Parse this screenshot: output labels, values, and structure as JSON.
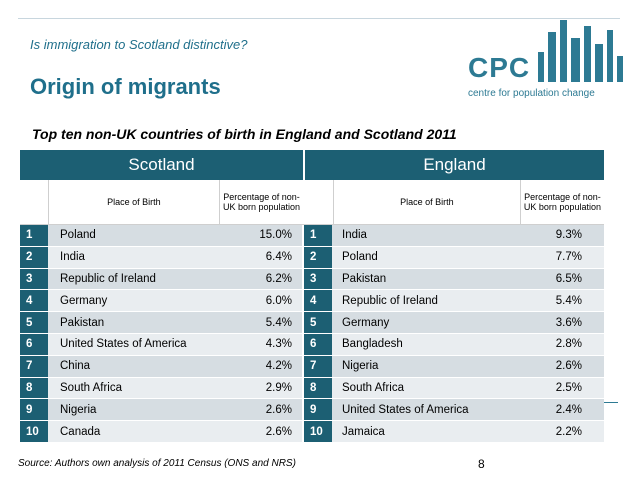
{
  "header": {
    "subtitle": "Is immigration to Scotland distinctive?",
    "title": "Origin of migrants"
  },
  "logo": {
    "text": "CPC",
    "subtext": "centre for population change",
    "color": "#2d7a93"
  },
  "table": {
    "title": "Top ten non-UK countries of birth in England and Scotland 2011",
    "scotland_label": "Scotland",
    "england_label": "England",
    "scotland_headers": {
      "place": "Place of Birth",
      "pct": "Percentage of non-UK born population"
    },
    "england_headers": {
      "place": "Place of Birth",
      "pct": "Percentage of non-UK born population"
    },
    "rows": [
      {
        "s_rank": "1",
        "s_place": "Poland",
        "s_pct": "15.0%",
        "e_rank": "1",
        "e_place": "India",
        "e_pct": "9.3%"
      },
      {
        "s_rank": "2",
        "s_place": "India",
        "s_pct": "6.4%",
        "e_rank": "2",
        "e_place": "Poland",
        "e_pct": "7.7%"
      },
      {
        "s_rank": "3",
        "s_place": "Republic of Ireland",
        "s_pct": "6.2%",
        "e_rank": "3",
        "e_place": "Pakistan",
        "e_pct": "6.5%"
      },
      {
        "s_rank": "4",
        "s_place": "Germany",
        "s_pct": "6.0%",
        "e_rank": "4",
        "e_place": "Republic of Ireland",
        "e_pct": "5.4%"
      },
      {
        "s_rank": "5",
        "s_place": "Pakistan",
        "s_pct": "5.4%",
        "e_rank": "5",
        "e_place": "Germany",
        "e_pct": "3.6%"
      },
      {
        "s_rank": "6",
        "s_place": "United States of America",
        "s_pct": "4.3%",
        "e_rank": "6",
        "e_place": "Bangladesh",
        "e_pct": "2.8%"
      },
      {
        "s_rank": "7",
        "s_place": "China",
        "s_pct": "4.2%",
        "e_rank": "7",
        "e_place": "Nigeria",
        "e_pct": "2.6%"
      },
      {
        "s_rank": "8",
        "s_place": "South Africa",
        "s_pct": "2.9%",
        "e_rank": "8",
        "e_place": "South Africa",
        "e_pct": "2.5%"
      },
      {
        "s_rank": "9",
        "s_place": "Nigeria",
        "s_pct": "2.6%",
        "e_rank": "9",
        "e_place": "United States of America",
        "e_pct": "2.4%"
      },
      {
        "s_rank": "10",
        "s_place": "Canada",
        "s_pct": "2.6%",
        "e_rank": "10",
        "e_place": "Jamaica",
        "e_pct": "2.2%"
      }
    ]
  },
  "footer": {
    "source": "Source: Authors own analysis of 2011 Census (ONS and NRS)",
    "page": "8"
  }
}
